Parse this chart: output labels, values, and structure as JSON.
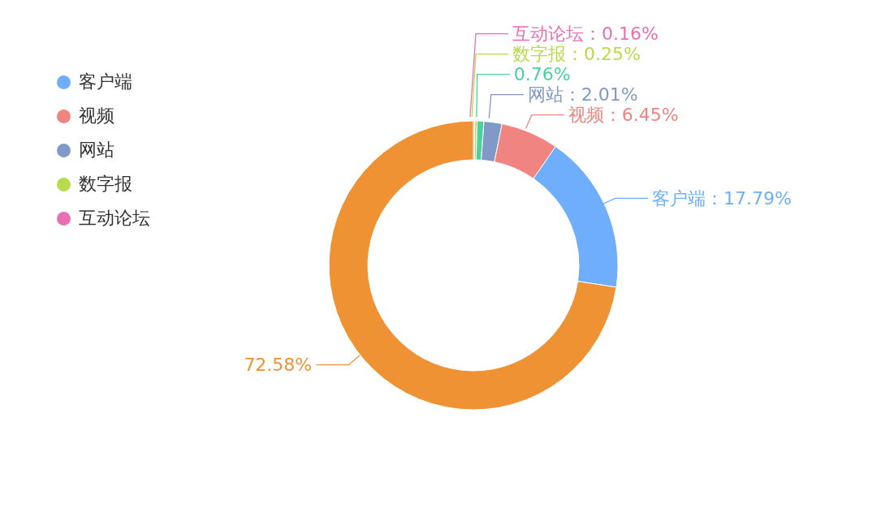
{
  "chart_data": {
    "type": "donut",
    "categories": [
      null,
      "客户端",
      "视频",
      "网站",
      null,
      "数字报",
      "互动论坛"
    ],
    "values": [
      72.58,
      17.79,
      6.45,
      2.01,
      0.76,
      0.25,
      0.16
    ],
    "colors": [
      "#ee9234",
      "#6eaefc",
      "#ef8480",
      "#8199c6",
      "#4bd19d",
      "#b8db4c",
      "#e86fb4"
    ],
    "value_labels": [
      "72.58%",
      "客户端：17.79%",
      "视频：6.45%",
      "网站：2.01%",
      "0.76%",
      "数字报：0.25%",
      "互动论坛：0.16%"
    ],
    "legend": "top left"
  }
}
